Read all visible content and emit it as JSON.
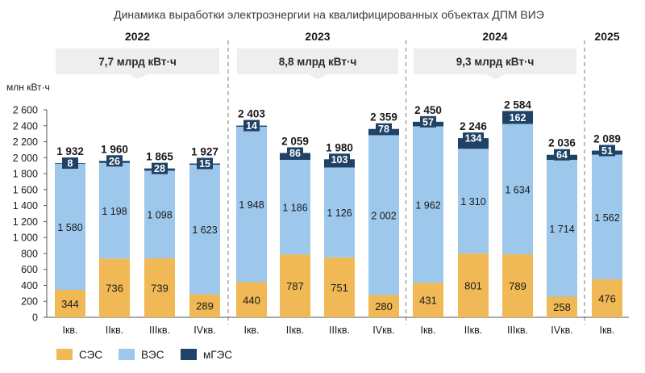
{
  "chart_data": {
    "type": "bar",
    "stacked": true,
    "title": "Динамика выработки электроэнергии на квалифицированных объектах ДПМ ВИЭ",
    "ylabel": "млн кВт·ч",
    "ylim": [
      0,
      2600
    ],
    "ytick_step": 200,
    "y_ticks": [
      "0",
      "200",
      "400",
      "600",
      "800",
      "1 000",
      "1 200",
      "1 400",
      "1 600",
      "1 800",
      "2 000",
      "2 200",
      "2 400",
      "2 600"
    ],
    "grid": false,
    "legend_position": "bottom-left",
    "groups": [
      {
        "year": "2022",
        "banner": "7,7 млрд кВт·ч",
        "count": 4
      },
      {
        "year": "2023",
        "banner": "8,8 млрд кВт·ч",
        "count": 4
      },
      {
        "year": "2024",
        "banner": "9,3 млрд кВт·ч",
        "count": 4
      },
      {
        "year": "2025",
        "banner": "",
        "count": 1
      }
    ],
    "categories": [
      "Iкв.",
      "IIкв.",
      "IIIкв.",
      "IVкв.",
      "Iкв.",
      "IIкв.",
      "IIIкв.",
      "IVкв.",
      "Iкв.",
      "IIкв.",
      "IIIкв.",
      "IVкв.",
      "Iкв."
    ],
    "series": [
      {
        "name": "СЭС",
        "color": "#f0b955",
        "values": [
          344,
          736,
          739,
          289,
          440,
          787,
          751,
          280,
          431,
          801,
          789,
          258,
          476
        ],
        "labels": [
          "344",
          "736",
          "739",
          "289",
          "440",
          "787",
          "751",
          "280",
          "431",
          "801",
          "789",
          "258",
          "476"
        ]
      },
      {
        "name": "ВЭС",
        "color": "#9dc8ec",
        "values": [
          1580,
          1198,
          1098,
          1623,
          1948,
          1186,
          1126,
          2002,
          1962,
          1310,
          1634,
          1714,
          1562
        ],
        "labels": [
          "1 580",
          "1 198",
          "1 098",
          "1 623",
          "1 948",
          "1 186",
          "1 126",
          "2 002",
          "1 962",
          "1 310",
          "1 634",
          "1 714",
          "1 562"
        ]
      },
      {
        "name": "мГЭС",
        "color": "#1f4266",
        "values": [
          8,
          26,
          28,
          15,
          14,
          86,
          103,
          78,
          57,
          134,
          162,
          64,
          51
        ],
        "labels": [
          "8",
          "26",
          "28",
          "15",
          "14",
          "86",
          "103",
          "78",
          "57",
          "134",
          "162",
          "64",
          "51"
        ]
      }
    ],
    "totals": [
      1932,
      1960,
      1865,
      1927,
      2403,
      2059,
      1980,
      2359,
      2450,
      2246,
      2584,
      2036,
      2089
    ],
    "total_labels": [
      "1 932",
      "1 960",
      "1 865",
      "1 927",
      "2 403",
      "2 059",
      "1 980",
      "2 359",
      "2 450",
      "2 246",
      "2 584",
      "2 036",
      "2 089"
    ]
  },
  "colors": {
    "banner_fill": "#eeeeee",
    "divider": "#9a9a9a",
    "axis": "#555555",
    "text": "#1a1a1a"
  }
}
